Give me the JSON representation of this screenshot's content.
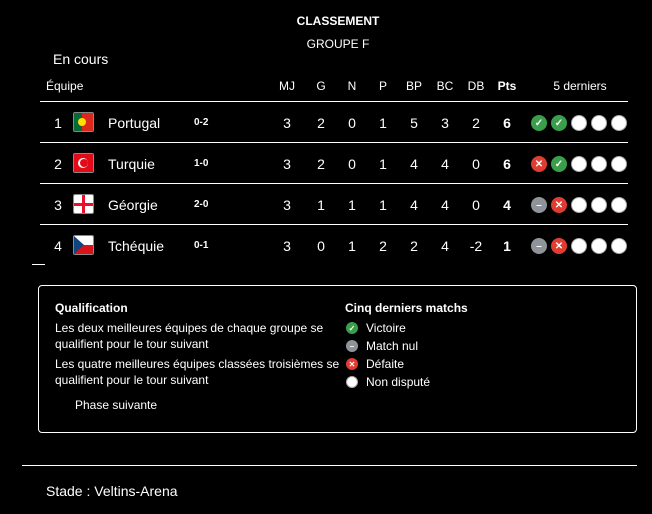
{
  "header": {
    "title": "CLASSEMENT",
    "group": "GROUPE F",
    "status": "En cours"
  },
  "columns": {
    "team": "Équipe",
    "mj": "MJ",
    "g": "G",
    "n": "N",
    "p": "P",
    "bp": "BP",
    "bc": "BC",
    "db": "DB",
    "pts": "Pts",
    "last5": "5 derniers"
  },
  "rows": [
    {
      "rank": "1",
      "flag": "portugal",
      "name": "Portugal",
      "score": "0-2",
      "mj": "3",
      "g": "2",
      "n": "0",
      "p": "1",
      "bp": "5",
      "bc": "3",
      "db": "2",
      "pts": "6",
      "last5": [
        "win",
        "win",
        "none",
        "none",
        "none"
      ]
    },
    {
      "rank": "2",
      "flag": "turkey",
      "name": "Turquie",
      "score": "1-0",
      "mj": "3",
      "g": "2",
      "n": "0",
      "p": "1",
      "bp": "4",
      "bc": "4",
      "db": "0",
      "pts": "6",
      "last5": [
        "loss",
        "win",
        "none",
        "none",
        "none"
      ]
    },
    {
      "rank": "3",
      "flag": "georgia",
      "name": "Géorgie",
      "score": "2-0",
      "mj": "3",
      "g": "1",
      "n": "1",
      "p": "1",
      "bp": "4",
      "bc": "4",
      "db": "0",
      "pts": "4",
      "last5": [
        "draw",
        "loss",
        "none",
        "none",
        "none"
      ]
    },
    {
      "rank": "4",
      "flag": "czechia",
      "name": "Tchéquie",
      "score": "0-1",
      "mj": "3",
      "g": "0",
      "n": "1",
      "p": "2",
      "bp": "2",
      "bc": "4",
      "db": "-2",
      "pts": "1",
      "last5": [
        "draw",
        "loss",
        "none",
        "none",
        "none"
      ]
    }
  ],
  "legend": {
    "qual_title": "Qualification",
    "qual_1": "Les deux meilleures équipes de chaque groupe se qualifient pour le tour suivant",
    "qual_2": "Les quatre meilleures équipes classées troisièmes se qualifient pour le tour suivant",
    "next_phase": "Phase suivante",
    "last5_title": "Cinq derniers matchs",
    "win": "Victoire",
    "draw": "Match nul",
    "loss": "Défaite",
    "none": "Non disputé"
  },
  "colors": {
    "win": "#3a9f4b",
    "loss": "#e03c31",
    "draw": "#8e9499",
    "none": "#ffffff"
  },
  "footer": {
    "stadium": "Stade : Veltins-Arena"
  }
}
